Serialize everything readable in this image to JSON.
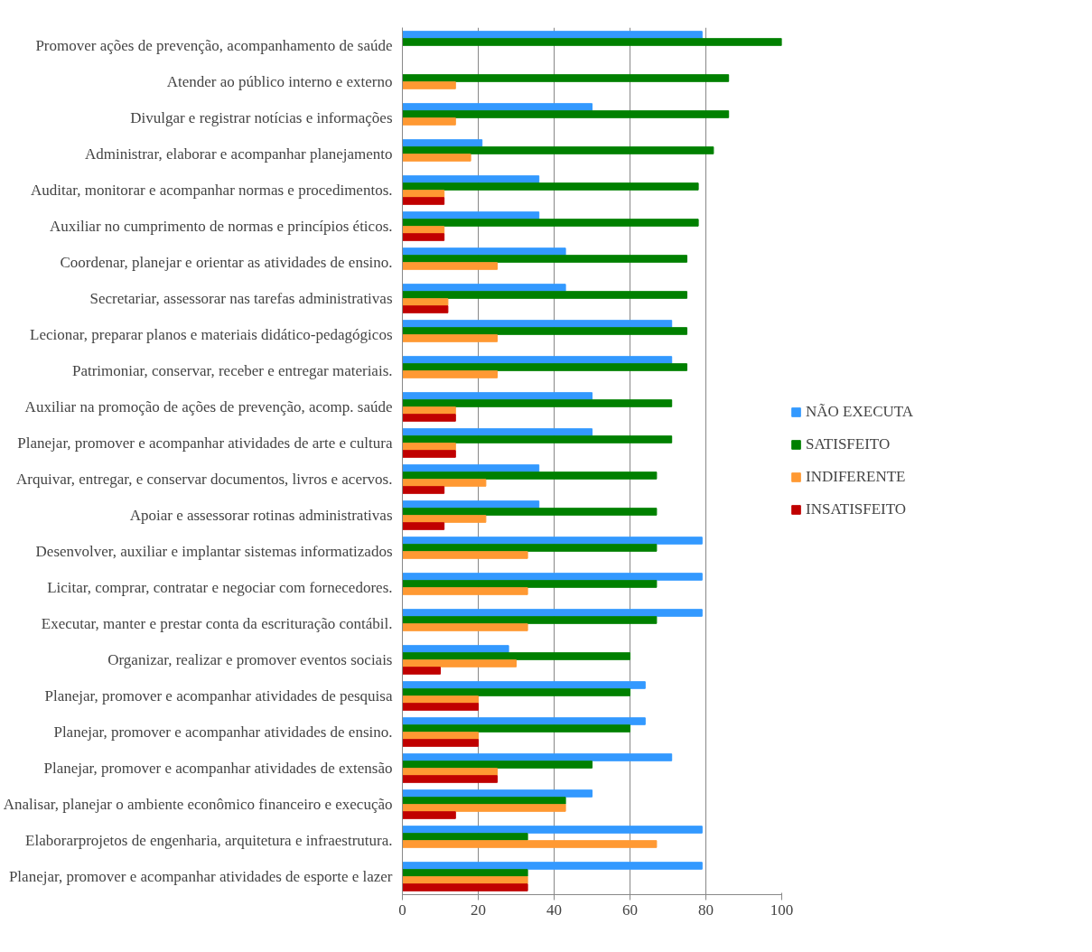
{
  "chart_data": {
    "type": "bar",
    "orientation": "horizontal",
    "categories": [
      "Promover ações de prevenção, acompanhamento de saúde",
      "Atender ao público interno e externo",
      "Divulgar e registrar notícias e informações",
      "Administrar, elaborar e acompanhar planejamento",
      "Auditar, monitorar e acompanhar normas e procedimentos.",
      "Auxiliar no cumprimento de normas e princípios éticos.",
      "Coordenar, planejar e orientar as atividades de ensino.",
      "Secretariar, assessorar nas tarefas administrativas",
      "Lecionar, preparar planos e materiais didático-pedagógicos",
      "Patrimoniar, conservar, receber e entregar materiais.",
      "Auxiliar na promoção de ações de prevenção, acomp. saúde",
      "Planejar, promover e acompanhar atividades de arte e cultura",
      "Arquivar, entregar, e conservar documentos, livros e acervos.",
      "Apoiar e assessorar rotinas administrativas",
      "Desenvolver, auxiliar e implantar sistemas informatizados",
      "Licitar, comprar, contratar e negociar com fornecedores.",
      "Executar, manter e prestar conta da escrituração contábil.",
      "Organizar, realizar e promover eventos sociais",
      "Planejar, promover e acompanhar atividades de pesquisa",
      "Planejar, promover e acompanhar atividades de ensino.",
      "Planejar, promover e acompanhar atividades de extensão",
      "Analisar, planejar o ambiente econômico financeiro e execução",
      "Elaborarprojetos de engenharia, arquitetura e infraestrutura.",
      "Planejar, promover e acompanhar atividades de esporte e lazer"
    ],
    "series": [
      {
        "name": "NÃO EXECUTA",
        "color": "#3399ff",
        "values": [
          79,
          null,
          50,
          21,
          36,
          36,
          43,
          43,
          71,
          71,
          50,
          50,
          36,
          36,
          79,
          79,
          79,
          28,
          64,
          64,
          71,
          50,
          79,
          79
        ]
      },
      {
        "name": "SATISFEITO",
        "color": "#008000",
        "values": [
          100,
          86,
          86,
          82,
          78,
          78,
          75,
          75,
          75,
          75,
          71,
          71,
          67,
          67,
          67,
          67,
          67,
          60,
          60,
          60,
          50,
          43,
          33,
          33
        ]
      },
      {
        "name": "INDIFERENTE",
        "color": "#ff9933",
        "values": [
          null,
          14,
          14,
          18,
          11,
          11,
          25,
          12,
          25,
          25,
          14,
          14,
          22,
          22,
          33,
          33,
          33,
          30,
          20,
          20,
          25,
          43,
          67,
          33
        ]
      },
      {
        "name": "INSATISFEITO",
        "color": "#c00000",
        "values": [
          null,
          null,
          null,
          null,
          11,
          11,
          null,
          12,
          null,
          null,
          14,
          14,
          11,
          11,
          null,
          null,
          null,
          10,
          20,
          20,
          25,
          14,
          null,
          33
        ]
      }
    ],
    "xlim": [
      0,
      100
    ],
    "xticks": [
      0,
      20,
      40,
      60,
      80,
      100
    ],
    "grid": "x",
    "legend": "right"
  }
}
